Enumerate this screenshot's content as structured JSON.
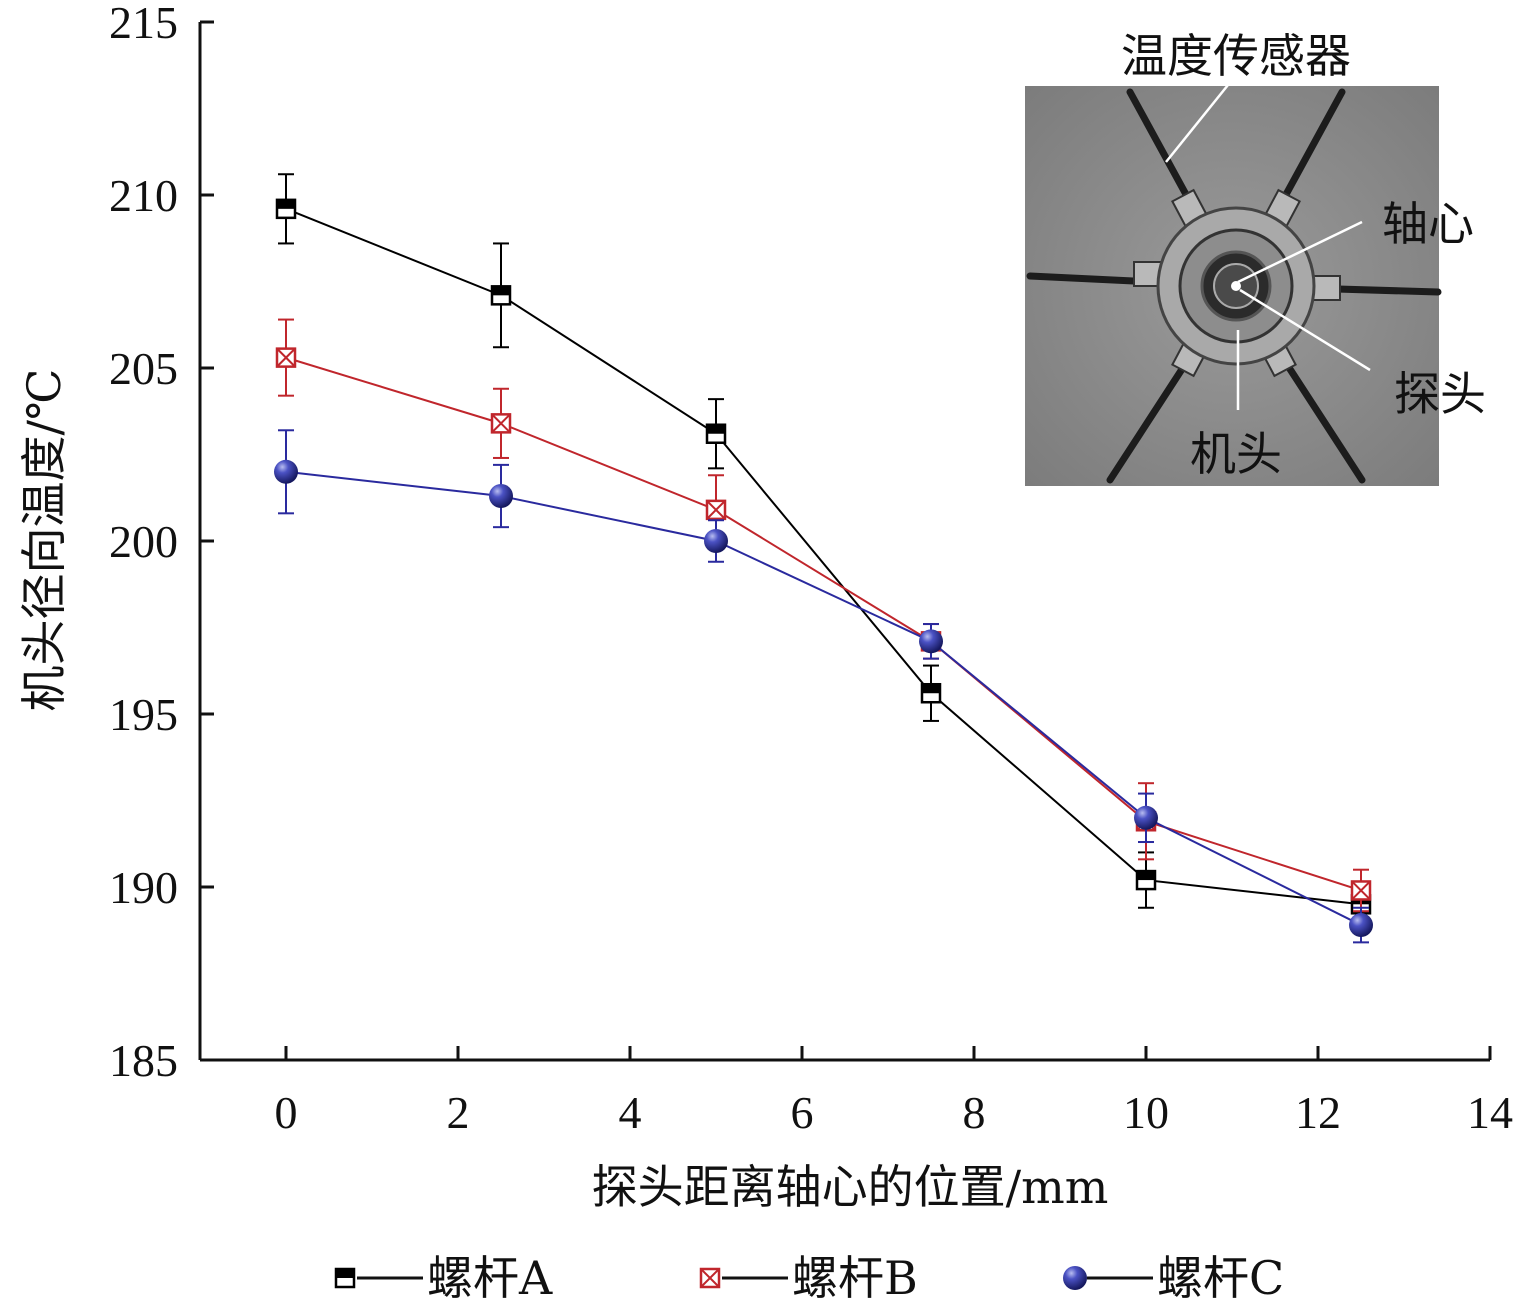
{
  "chart_data": {
    "type": "line",
    "xlabel": "探头距离轴心的位置/mm",
    "ylabel": "机头径向温度/℃",
    "xlim": [
      -1,
      14
    ],
    "ylim": [
      185,
      215
    ],
    "xticks": [
      0,
      2,
      4,
      6,
      8,
      10,
      12,
      14
    ],
    "yticks": [
      185,
      190,
      195,
      200,
      205,
      210,
      215
    ],
    "x": [
      0,
      2.5,
      5,
      7.5,
      10,
      12.5
    ],
    "grid": false,
    "legend_position": "bottom",
    "series": [
      {
        "name": "螺杆A",
        "color": "#000000",
        "marker": "half-filled-square",
        "values": [
          209.6,
          207.1,
          203.1,
          195.6,
          190.2,
          189.5
        ],
        "errors": [
          1.0,
          1.5,
          1.0,
          0.8,
          0.8,
          0.5
        ]
      },
      {
        "name": "螺杆B",
        "color": "#c0262c",
        "marker": "crossed-square",
        "values": [
          205.3,
          203.4,
          200.9,
          197.1,
          191.9,
          189.9
        ],
        "errors": [
          1.1,
          1.0,
          1.0,
          0.5,
          1.1,
          0.6
        ]
      },
      {
        "name": "螺杆C",
        "color": "#2a2a9e",
        "marker": "sphere",
        "values": [
          202.0,
          201.3,
          200.0,
          197.1,
          192.0,
          188.9
        ],
        "errors": [
          1.2,
          0.9,
          0.6,
          0.5,
          0.7,
          0.5
        ]
      }
    ],
    "inset": {
      "labels": [
        "温度传感器",
        "轴心",
        "探头",
        "机头"
      ]
    }
  }
}
